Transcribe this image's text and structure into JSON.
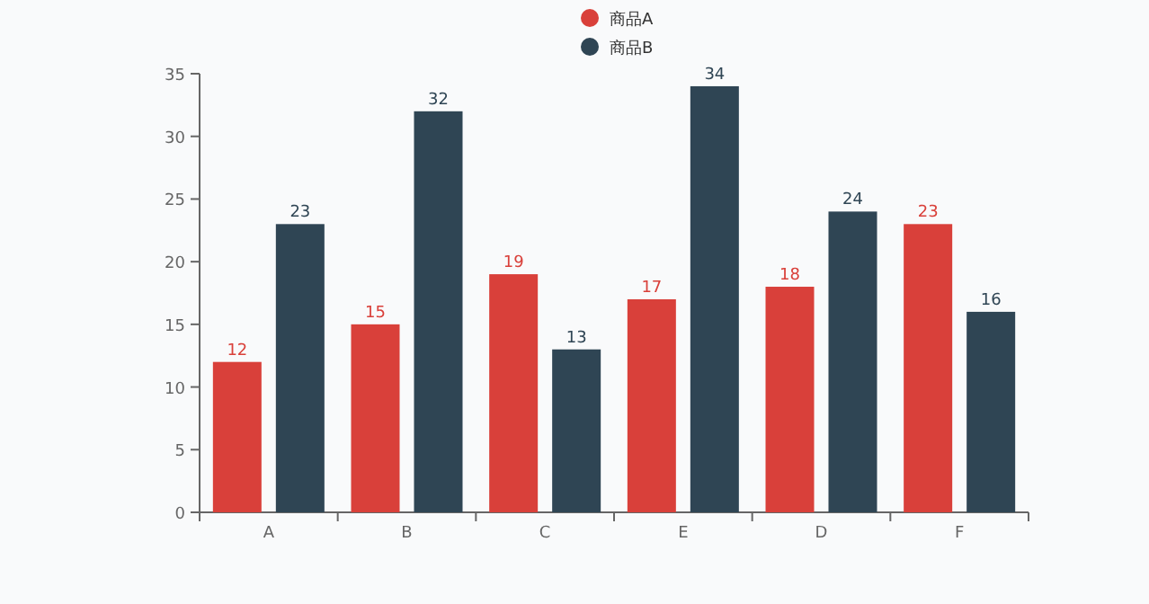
{
  "chart_data": {
    "type": "bar",
    "categories": [
      "A",
      "B",
      "C",
      "E",
      "D",
      "F"
    ],
    "series": [
      {
        "name": "商品A",
        "color": "#d9403a",
        "values": [
          12,
          15,
          19,
          17,
          18,
          23
        ]
      },
      {
        "name": "商品B",
        "color": "#2f4554",
        "values": [
          23,
          32,
          13,
          34,
          24,
          16
        ]
      }
    ],
    "ylim": [
      0,
      35
    ],
    "yticks": [
      0,
      5,
      10,
      15,
      20,
      25,
      30,
      35
    ],
    "grid": false,
    "legend": "top",
    "data_labels": true
  }
}
